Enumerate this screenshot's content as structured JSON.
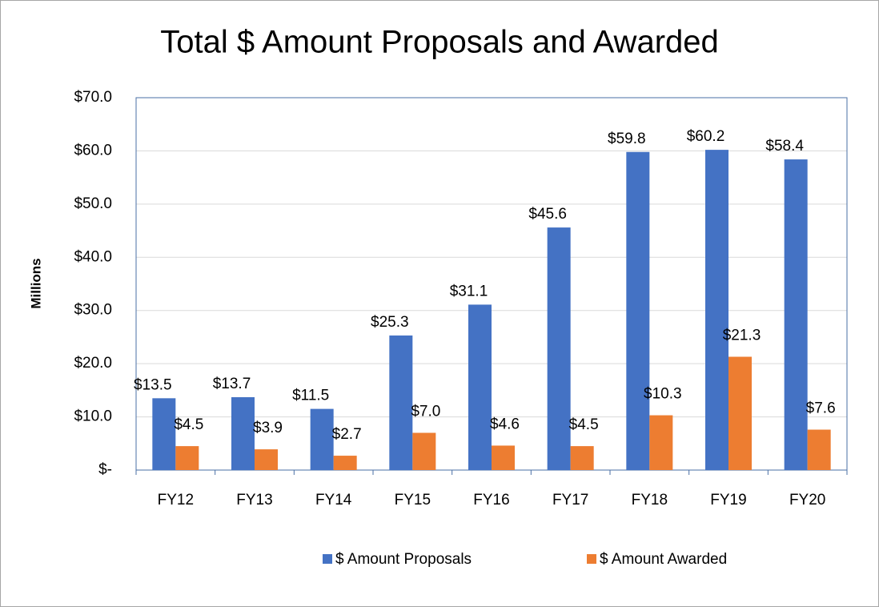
{
  "chart_data": {
    "type": "bar",
    "title": "Total $ Amount Proposals and Awarded",
    "y_label": "Millions",
    "categories": [
      "FY12",
      "FY13",
      "FY14",
      "FY15",
      "FY16",
      "FY17",
      "FY18",
      "FY19",
      "FY20"
    ],
    "series": [
      {
        "name": "$ Amount Proposals",
        "color": "#4472c4",
        "values": [
          13.5,
          13.7,
          11.5,
          25.3,
          31.1,
          45.6,
          59.8,
          60.2,
          58.4
        ],
        "value_labels": [
          "$13.5",
          "$13.7",
          "$11.5",
          "$25.3",
          "$31.1",
          "$45.6",
          "$59.8",
          "$60.2",
          "$58.4"
        ]
      },
      {
        "name": "$ Amount Awarded",
        "color": "#ed7d31",
        "values": [
          4.5,
          3.9,
          2.7,
          7.0,
          4.6,
          4.5,
          10.3,
          21.3,
          7.6
        ],
        "value_labels": [
          "$4.5",
          "$3.9",
          "$2.7",
          "$7.0",
          "$4.6",
          "$4.5",
          "$10.3",
          "$21.3",
          "$7.6"
        ]
      }
    ],
    "ylim": [
      0,
      70
    ],
    "yticks": [
      {
        "value": 0,
        "label": "$-"
      },
      {
        "value": 10,
        "label": "$10.0"
      },
      {
        "value": 20,
        "label": "$20.0"
      },
      {
        "value": 30,
        "label": "$30.0"
      },
      {
        "value": 40,
        "label": "$40.0"
      },
      {
        "value": 50,
        "label": "$50.0"
      },
      {
        "value": 60,
        "label": "$60.0"
      },
      {
        "value": 70,
        "label": "$70.0"
      }
    ],
    "grid": true,
    "legend": "bottom"
  }
}
